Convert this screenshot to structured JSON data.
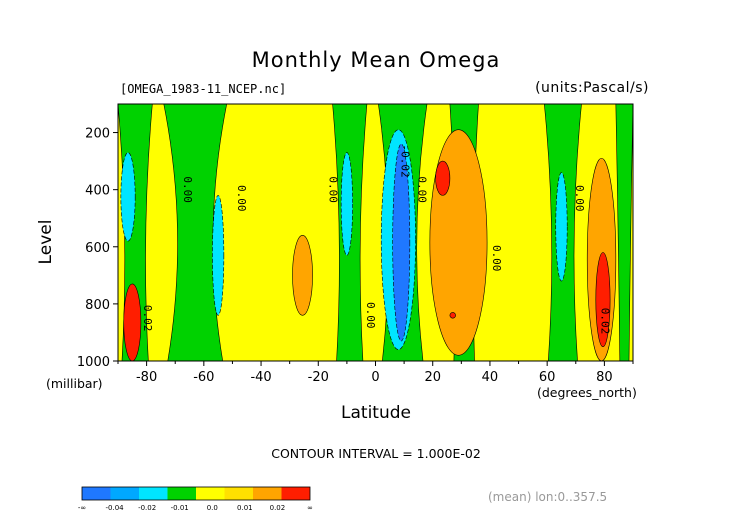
{
  "chart_data": {
    "type": "heatmap",
    "title": "Monthly Mean Omega",
    "source_label": "[OMEGA_1983-11_NCEP.nc]",
    "units_label": "(units:Pascal/s)",
    "xlabel": "Latitude",
    "x_unit_label": "(degrees_north)",
    "ylabel": "Level",
    "y_unit_label": "(millibar)",
    "xlim": [
      -90,
      90
    ],
    "ylim": [
      1000,
      100
    ],
    "x_ticks": [
      "-80",
      "-60",
      "-40",
      "-20",
      "0",
      "20",
      "40",
      "60",
      "80"
    ],
    "x_tick_values": [
      -80,
      -60,
      -40,
      -20,
      0,
      20,
      40,
      60,
      80
    ],
    "y_ticks": [
      "200",
      "400",
      "600",
      "800",
      "1000"
    ],
    "y_tick_values": [
      200,
      400,
      600,
      800,
      1000
    ],
    "contour_interval_text": "CONTOUR INTERVAL = 1.000E-02",
    "footnote": "(mean) lon:0..357.5",
    "colorbar": {
      "labels": [
        "-∞",
        "-0.04",
        "-0.02",
        "-0.01",
        "0.0",
        "0.01",
        "0.02",
        "∞"
      ],
      "colors": [
        "#1f78ff",
        "#00a8ff",
        "#00e5ff",
        "#00d200",
        "#ffff00",
        "#ffe000",
        "#ffa500",
        "#ff1e00"
      ]
    },
    "regions": [
      {
        "color": "#00e5ff",
        "x": [
          -89,
          -84
        ],
        "y": [
          270,
          580
        ]
      },
      {
        "color": "#00e5ff",
        "x": [
          -57,
          -53
        ],
        "y": [
          420,
          840
        ]
      },
      {
        "color": "#00e5ff",
        "x": [
          -12,
          -8
        ],
        "y": [
          270,
          630
        ]
      },
      {
        "color": "#00e5ff",
        "x": [
          2,
          14
        ],
        "y": [
          190,
          960
        ]
      },
      {
        "color": "#1f78ff",
        "x": [
          6,
          12
        ],
        "y": [
          240,
          930
        ]
      },
      {
        "color": "#ffa500",
        "x": [
          19,
          39
        ],
        "y": [
          190,
          980
        ]
      },
      {
        "color": "#ff1e00",
        "x": [
          21,
          26
        ],
        "y": [
          300,
          420
        ]
      },
      {
        "color": "#ff1e00",
        "x": [
          26,
          28
        ],
        "y": [
          830,
          850
        ]
      },
      {
        "color": "#ffa500",
        "x": [
          -29,
          -22
        ],
        "y": [
          560,
          840
        ]
      },
      {
        "color": "#00e5ff",
        "x": [
          63,
          67
        ],
        "y": [
          340,
          720
        ]
      },
      {
        "color": "#ffa500",
        "x": [
          74,
          84
        ],
        "y": [
          290,
          1000
        ]
      },
      {
        "color": "#ff1e00",
        "x": [
          77,
          82
        ],
        "y": [
          620,
          950
        ]
      },
      {
        "color": "#ff1e00",
        "x": [
          -88,
          -82
        ],
        "y": [
          730,
          1000
        ]
      }
    ],
    "contour_labels": [
      {
        "text": "0.00",
        "x": -67,
        "y": 400
      },
      {
        "text": "0.00",
        "x": -48,
        "y": 430
      },
      {
        "text": "0.00",
        "x": -16,
        "y": 400
      },
      {
        "text": "0.00",
        "x": -3,
        "y": 840
      },
      {
        "text": "-0.02",
        "x": 9,
        "y": 300
      },
      {
        "text": "0.00",
        "x": 15,
        "y": 400
      },
      {
        "text": "0.00",
        "x": 41,
        "y": 640
      },
      {
        "text": "0.00",
        "x": 70,
        "y": 430
      },
      {
        "text": "0.02",
        "x": 79,
        "y": 860
      },
      {
        "text": "0.02",
        "x": -81,
        "y": 850
      }
    ]
  }
}
